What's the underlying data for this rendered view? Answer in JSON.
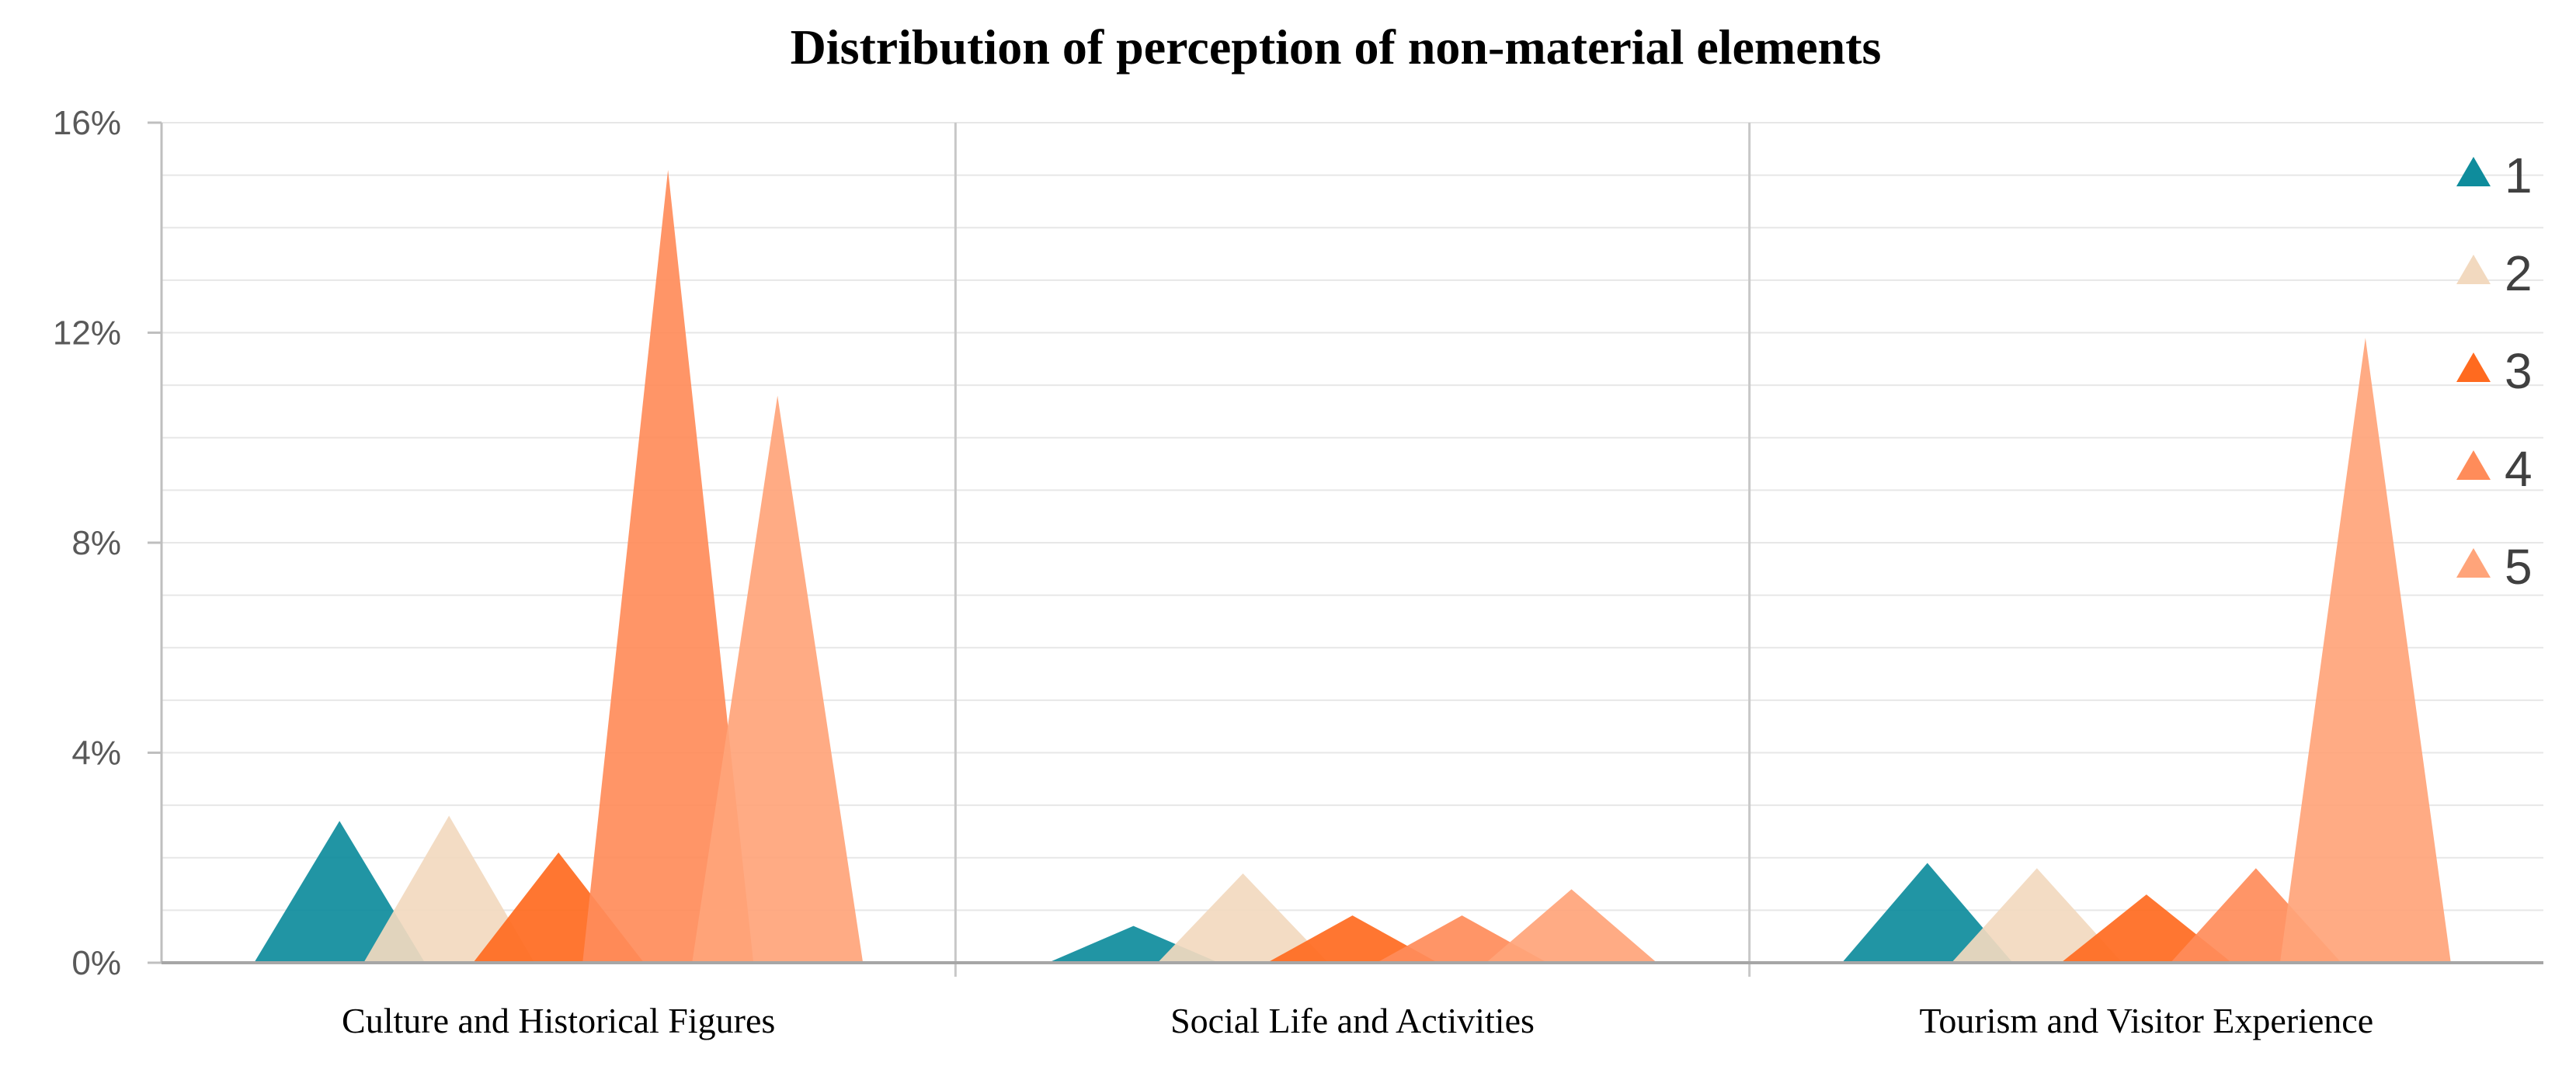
{
  "chart_data": {
    "type": "area",
    "title": "Distribution of perception of non-material elements",
    "xlabel": "",
    "ylabel": "",
    "ylim": [
      0,
      16
    ],
    "y_ticks": [
      0,
      4,
      8,
      12,
      16
    ],
    "y_tick_labels": [
      "0%",
      "4%",
      "8%",
      "12%",
      "16%"
    ],
    "grid": true,
    "legend_position": "right",
    "categories": [
      "Culture and Historical Figures",
      "Social Life and Activities",
      "Tourism and Visitor Experience"
    ],
    "series": [
      {
        "name": "1",
        "color": "#0E8C9C",
        "values": [
          2.7,
          0.7,
          1.9
        ]
      },
      {
        "name": "2",
        "color": "#F2D9BF",
        "values": [
          2.8,
          1.7,
          1.8
        ]
      },
      {
        "name": "3",
        "color": "#FF6A1F",
        "values": [
          2.1,
          0.9,
          1.3
        ]
      },
      {
        "name": "4",
        "color": "#FF8C5A",
        "values": [
          15.1,
          0.9,
          1.8
        ]
      },
      {
        "name": "5",
        "color": "#FFA47A",
        "values": [
          10.8,
          1.4,
          11.9
        ]
      }
    ]
  }
}
